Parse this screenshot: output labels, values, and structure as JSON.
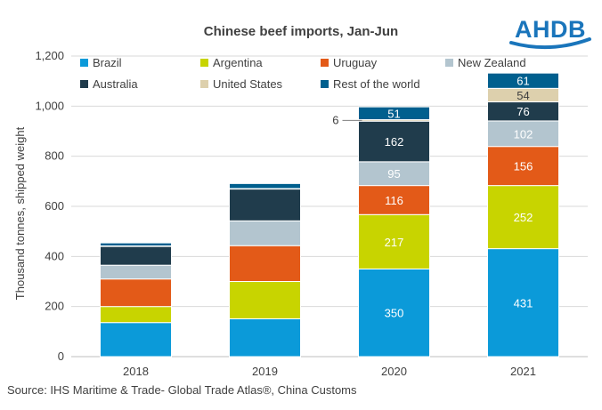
{
  "chart_data": {
    "type": "bar",
    "stacked": true,
    "title": "Chinese beef imports, Jan-Jun",
    "ylabel": "Thousand tonnes, shipped weight",
    "xlabel": "",
    "ylim": [
      0,
      1200
    ],
    "yticks": [
      "0",
      "200",
      "400",
      "600",
      "800",
      "1,000",
      "1,200"
    ],
    "categories": [
      "2018",
      "2019",
      "2020",
      "2021"
    ],
    "grid": true,
    "legend_position": "top",
    "series": [
      {
        "name": "Brazil",
        "color": "#0b9ad9",
        "values": [
          136,
          151,
          350,
          431
        ],
        "labels": [
          null,
          null,
          "350",
          "431"
        ]
      },
      {
        "name": "Argentina",
        "color": "#c8d400",
        "values": [
          64,
          149,
          217,
          252
        ],
        "labels": [
          null,
          null,
          "217",
          "252"
        ]
      },
      {
        "name": "Uruguay",
        "color": "#e35a18",
        "values": [
          110,
          143,
          116,
          156
        ],
        "labels": [
          null,
          null,
          "116",
          "156"
        ]
      },
      {
        "name": "New Zealand",
        "color": "#b3c5cf",
        "values": [
          55,
          99,
          95,
          102
        ],
        "labels": [
          null,
          null,
          "95",
          "102"
        ]
      },
      {
        "name": "Australia",
        "color": "#203c4c",
        "values": [
          75,
          127,
          162,
          76
        ],
        "labels": [
          null,
          null,
          "162",
          "76"
        ]
      },
      {
        "name": "United States",
        "color": "#ddd0ad",
        "values": [
          2,
          2,
          6,
          54
        ],
        "labels": [
          null,
          null,
          null,
          "54"
        ]
      },
      {
        "name": "Rest of the world",
        "color": "#005f8e",
        "values": [
          12,
          20,
          51,
          61
        ],
        "labels": [
          null,
          null,
          "51",
          "61"
        ]
      }
    ],
    "annotations": [
      {
        "text": "6",
        "category": "2020",
        "series": "United States"
      }
    ]
  },
  "logo_text": "AHDB",
  "source": "Source: IHS Maritime & Trade- Global Trade Atlas®, China Customs"
}
